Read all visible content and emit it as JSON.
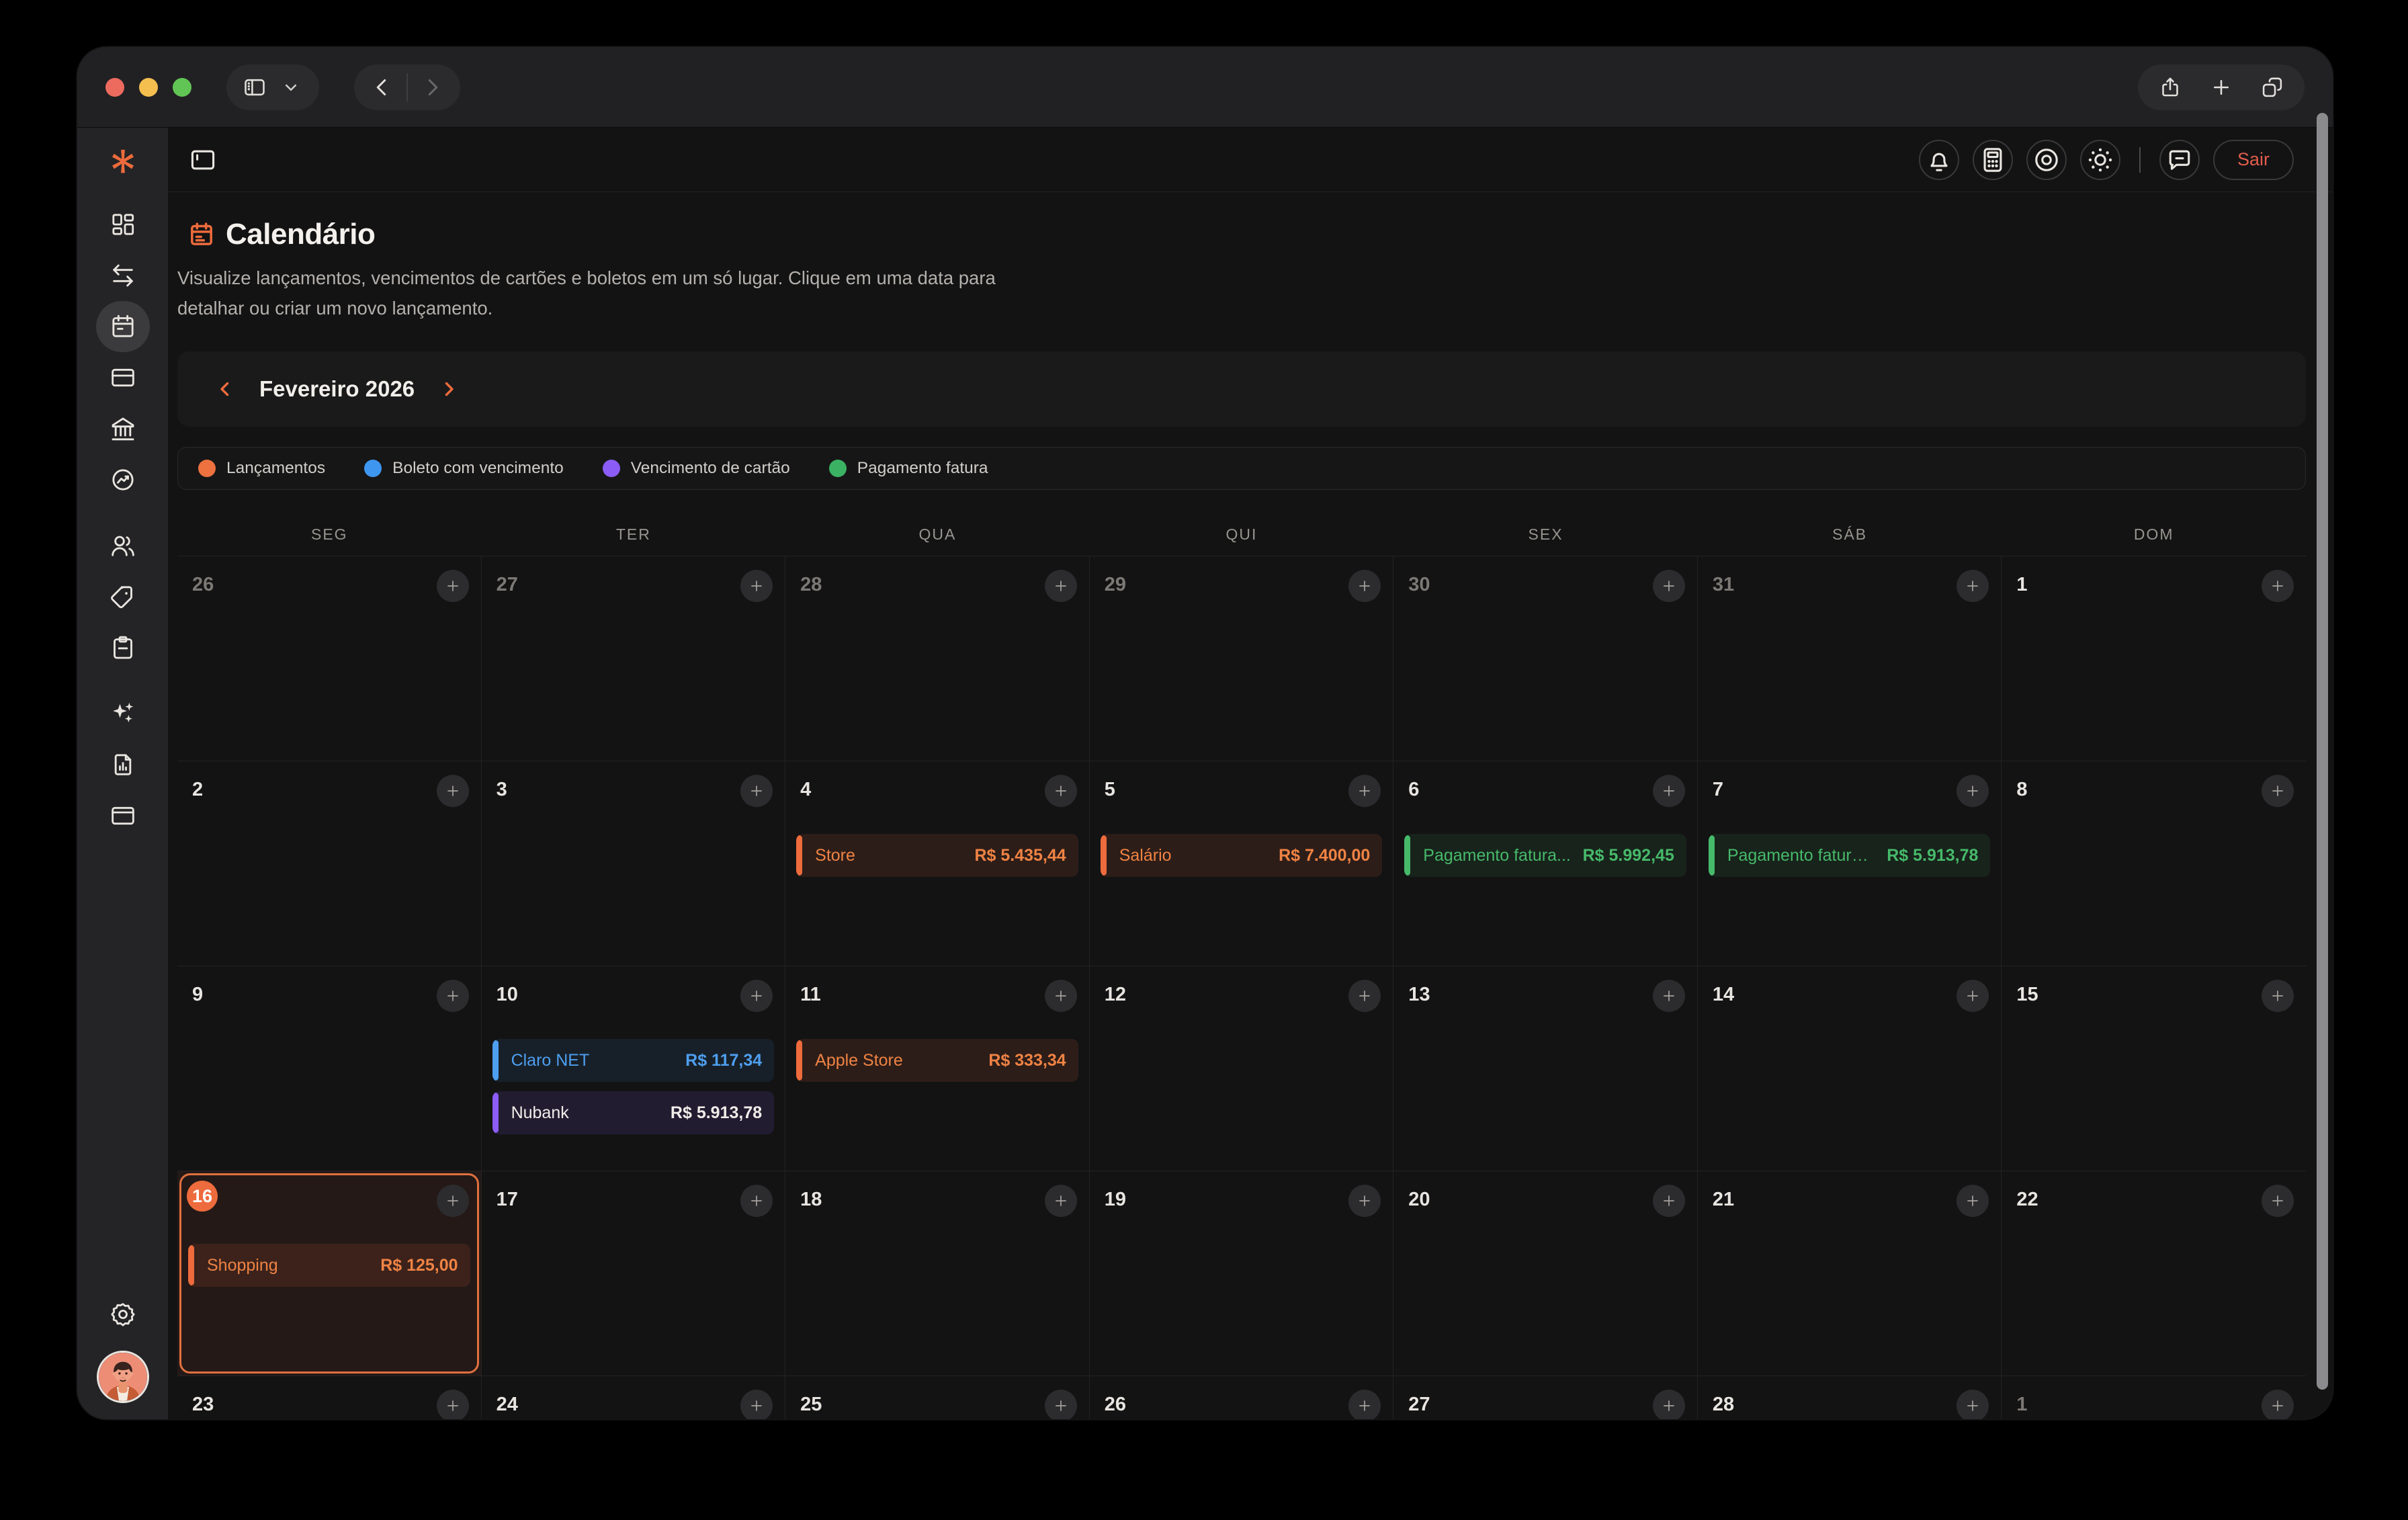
{
  "colors": {
    "accent": "#ED6B3C",
    "event_orange": "#EF8344",
    "event_blue": "#4E9FF0",
    "event_purple": "#8B5CF6",
    "event_green": "#47B96A",
    "logout_red": "#E25D4D",
    "traffic_red": "#ED6A5F",
    "traffic_yellow": "#F5BF4F",
    "traffic_green": "#61C555"
  },
  "browser_chrome": {
    "traffic_lights": [
      "#ED6A5F",
      "#F5BF4F",
      "#61C555"
    ],
    "left_icons": [
      "sidebar-toggle-icon",
      "chevron-down-icon"
    ],
    "nav_icons": [
      "back-icon",
      "forward-icon"
    ],
    "right_icons": [
      "share-icon",
      "new-tab-icon",
      "tabs-overview-icon"
    ]
  },
  "sidebar": {
    "logo_icon": "asterisk-logo-icon",
    "items": [
      {
        "id": "dashboard",
        "icon": "dashboard-icon",
        "active": false,
        "gap": false
      },
      {
        "id": "transactions",
        "icon": "transfers-icon",
        "active": false,
        "gap": false
      },
      {
        "id": "calendar",
        "icon": "calendar-icon",
        "active": true,
        "gap": false
      },
      {
        "id": "cards",
        "icon": "card-icon",
        "active": false,
        "gap": false
      },
      {
        "id": "bank",
        "icon": "bank-icon",
        "active": false,
        "gap": false
      },
      {
        "id": "investments",
        "icon": "investments-icon",
        "active": false,
        "gap": false
      },
      {
        "id": "users",
        "icon": "users-icon",
        "active": false,
        "gap": true
      },
      {
        "id": "tags",
        "icon": "tag-icon",
        "active": false,
        "gap": false
      },
      {
        "id": "notes",
        "icon": "notes-icon",
        "active": false,
        "gap": false
      },
      {
        "id": "ai",
        "icon": "ai-icon",
        "active": false,
        "gap": true
      },
      {
        "id": "reports",
        "icon": "report-icon",
        "active": false,
        "gap": false
      },
      {
        "id": "accounts",
        "icon": "accounts-icon",
        "active": false,
        "gap": false
      }
    ],
    "bottom": [
      {
        "id": "settings",
        "icon": "gear-icon"
      }
    ]
  },
  "app_header": {
    "panel_icon": "panel-toggle-icon",
    "right_icons": [
      "bell-icon",
      "calculator-icon",
      "eye-icon",
      "theme-icon"
    ],
    "after_divider_icons": [
      "chat-icon"
    ],
    "logout_label": "Sair"
  },
  "page": {
    "title": "Calendário",
    "title_icon": "calendar-title-icon",
    "description": "Visualize lançamentos, vencimentos de cartões e boletos em um só lugar. Clique em uma data para detalhar ou criar um novo lançamento.",
    "month_label": "Fevereiro 2026"
  },
  "legend": [
    {
      "label": "Lançamentos",
      "color": "#ED7240",
      "type": "lancamento"
    },
    {
      "label": "Boleto com vencimento",
      "color": "#3E96F0",
      "type": "boleto"
    },
    {
      "label": "Vencimento de cartão",
      "color": "#8B5CF6",
      "type": "cartao"
    },
    {
      "label": "Pagamento fatura",
      "color": "#3BB263",
      "type": "pagamento"
    }
  ],
  "calendar": {
    "weekdays": [
      "SEG",
      "TER",
      "QUA",
      "QUI",
      "SEX",
      "SÁB",
      "DOM"
    ],
    "weeks": [
      [
        {
          "day": 26,
          "outside": true
        },
        {
          "day": 27,
          "outside": true
        },
        {
          "day": 28,
          "outside": true
        },
        {
          "day": 29,
          "outside": true
        },
        {
          "day": 30,
          "outside": true
        },
        {
          "day": 31,
          "outside": true
        },
        {
          "day": 1,
          "outside": false
        }
      ],
      [
        {
          "day": 2
        },
        {
          "day": 3
        },
        {
          "day": 4,
          "events": [
            {
              "label": "Store",
              "amount": "R$ 5.435,44",
              "type": "lancamento"
            }
          ]
        },
        {
          "day": 5,
          "events": [
            {
              "label": "Salário",
              "amount": "R$ 7.400,00",
              "type": "lancamento"
            }
          ]
        },
        {
          "day": 6,
          "events": [
            {
              "label": "Pagamento fatura...",
              "amount": "R$ 5.992,45",
              "type": "pagamento"
            }
          ]
        },
        {
          "day": 7,
          "events": [
            {
              "label": "Pagamento fatura ...",
              "amount": "R$ 5.913,78",
              "type": "pagamento"
            }
          ]
        },
        {
          "day": 8
        }
      ],
      [
        {
          "day": 9
        },
        {
          "day": 10,
          "events": [
            {
              "label": "Claro NET",
              "amount": "R$ 117,34",
              "type": "boleto"
            },
            {
              "label": "Nubank",
              "amount": "R$ 5.913,78",
              "type": "cartao"
            }
          ]
        },
        {
          "day": 11,
          "events": [
            {
              "label": "Apple Store",
              "amount": "R$ 333,34",
              "type": "lancamento"
            }
          ]
        },
        {
          "day": 12
        },
        {
          "day": 13
        },
        {
          "day": 14
        },
        {
          "day": 15
        }
      ],
      [
        {
          "day": 16,
          "today": true,
          "events": [
            {
              "label": "Shopping",
              "amount": "R$ 125,00",
              "type": "lancamento"
            }
          ]
        },
        {
          "day": 17
        },
        {
          "day": 18
        },
        {
          "day": 19
        },
        {
          "day": 20
        },
        {
          "day": 21
        },
        {
          "day": 22
        }
      ],
      [
        {
          "day": 23
        },
        {
          "day": 24
        },
        {
          "day": 25
        },
        {
          "day": 26
        },
        {
          "day": 27
        },
        {
          "day": 28
        },
        {
          "day": 1,
          "outside": true
        }
      ]
    ]
  }
}
